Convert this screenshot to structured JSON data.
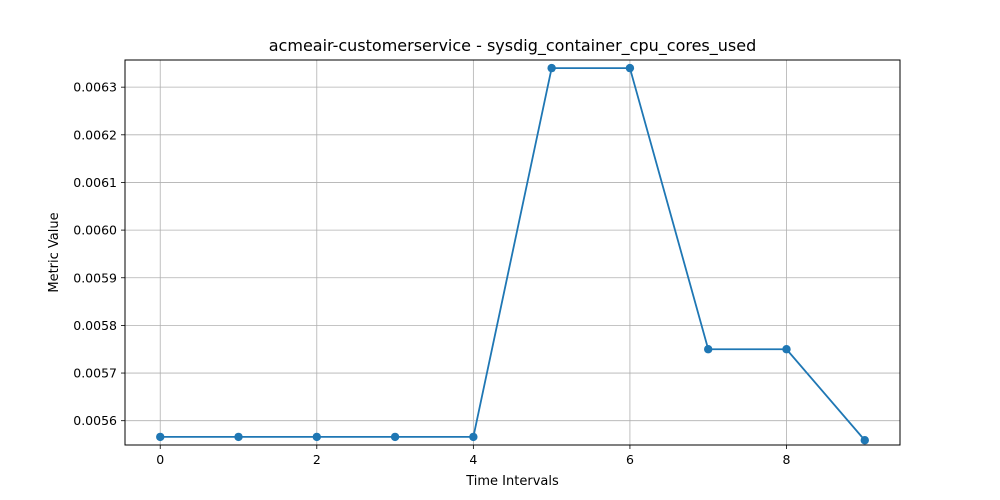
{
  "chart_data": {
    "type": "line",
    "title": "acmeair-customerservice - sysdig_container_cpu_cores_used",
    "xlabel": "Time Intervals",
    "ylabel": "Metric Value",
    "x": [
      0,
      1,
      2,
      3,
      4,
      5,
      6,
      7,
      8,
      9
    ],
    "series": [
      {
        "values": [
          0.005566,
          0.005566,
          0.005566,
          0.005566,
          0.005566,
          0.00634,
          0.00634,
          0.00575,
          0.00575,
          0.005559
        ]
      }
    ],
    "xlim": [
      -0.45,
      9.45
    ],
    "ylim": [
      0.005549,
      0.006357
    ],
    "x_ticks": [
      0,
      2,
      4,
      6,
      8
    ],
    "x_tick_labels": [
      "0",
      "2",
      "4",
      "6",
      "8"
    ],
    "y_ticks": [
      0.0056,
      0.0057,
      0.0058,
      0.0059,
      0.006,
      0.0061,
      0.0062,
      0.0063
    ],
    "y_tick_labels": [
      "0.0056",
      "0.0057",
      "0.0058",
      "0.0059",
      "0.0060",
      "0.0061",
      "0.0062",
      "0.0063"
    ],
    "grid": true,
    "legend": "none",
    "line_color": "#1f77b4"
  }
}
